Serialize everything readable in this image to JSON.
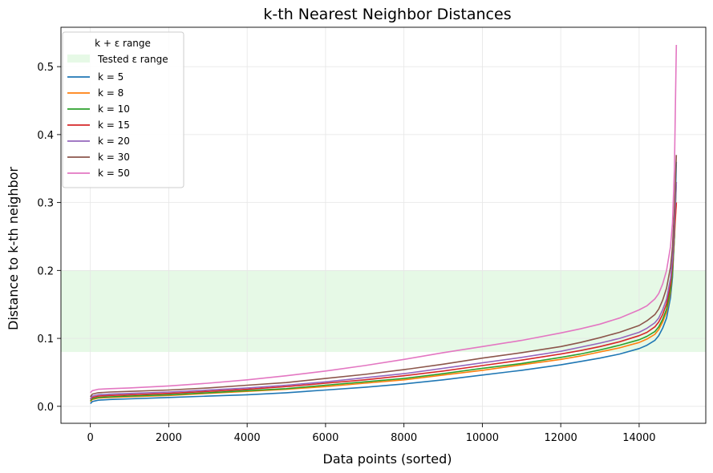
{
  "chart_data": {
    "type": "line",
    "title": "k-th Nearest Neighbor Distances",
    "xlabel": "Data points (sorted)",
    "ylabel": "Distance to k-th neighbor",
    "xlim": [
      -750,
      15700
    ],
    "ylim": [
      -0.025,
      0.558
    ],
    "xticks": [
      0,
      2000,
      4000,
      6000,
      8000,
      10000,
      12000,
      14000
    ],
    "yticks": [
      0.0,
      0.1,
      0.2,
      0.3,
      0.4,
      0.5
    ],
    "xtick_labels": [
      "0",
      "2000",
      "4000",
      "6000",
      "8000",
      "10000",
      "12000",
      "14000"
    ],
    "ytick_labels": [
      "0.0",
      "0.1",
      "0.2",
      "0.3",
      "0.4",
      "0.5"
    ],
    "grid": true,
    "legend": {
      "title": "k + ε range",
      "placement": "top-left",
      "band_label": "Tested ε range"
    },
    "band": {
      "y0": 0.08,
      "y1": 0.2,
      "color": "#e6f9e6",
      "label": "Tested ε range"
    },
    "x": [
      0,
      50,
      200,
      500,
      1000,
      2000,
      3000,
      4000,
      5000,
      6000,
      7000,
      8000,
      9000,
      10000,
      11000,
      12000,
      12500,
      13000,
      13500,
      14000,
      14200,
      14400,
      14500,
      14600,
      14700,
      14800,
      14850,
      14900,
      14950
    ],
    "series": [
      {
        "name": "k = 5",
        "color": "#1f77b4",
        "values": [
          0.004,
          0.007,
          0.009,
          0.01,
          0.011,
          0.013,
          0.015,
          0.017,
          0.02,
          0.024,
          0.028,
          0.033,
          0.039,
          0.046,
          0.053,
          0.061,
          0.066,
          0.071,
          0.077,
          0.085,
          0.09,
          0.097,
          0.104,
          0.115,
          0.13,
          0.16,
          0.19,
          0.25,
          0.36
        ]
      },
      {
        "name": "k = 8",
        "color": "#ff7f0e",
        "values": [
          0.007,
          0.01,
          0.012,
          0.013,
          0.014,
          0.016,
          0.019,
          0.022,
          0.025,
          0.029,
          0.034,
          0.039,
          0.046,
          0.053,
          0.061,
          0.069,
          0.074,
          0.08,
          0.086,
          0.094,
          0.099,
          0.106,
          0.113,
          0.124,
          0.139,
          0.168,
          0.198,
          0.25,
          0.3
        ]
      },
      {
        "name": "k = 10",
        "color": "#2ca02c",
        "values": [
          0.008,
          0.011,
          0.013,
          0.014,
          0.015,
          0.017,
          0.02,
          0.023,
          0.026,
          0.031,
          0.036,
          0.041,
          0.048,
          0.056,
          0.063,
          0.072,
          0.077,
          0.083,
          0.09,
          0.098,
          0.103,
          0.11,
          0.117,
          0.128,
          0.143,
          0.172,
          0.2,
          0.25,
          0.33
        ]
      },
      {
        "name": "k = 15",
        "color": "#d62728",
        "values": [
          0.01,
          0.013,
          0.015,
          0.016,
          0.017,
          0.019,
          0.022,
          0.025,
          0.029,
          0.034,
          0.039,
          0.045,
          0.052,
          0.06,
          0.068,
          0.077,
          0.082,
          0.088,
          0.095,
          0.104,
          0.109,
          0.117,
          0.124,
          0.135,
          0.151,
          0.18,
          0.21,
          0.26,
          0.3
        ]
      },
      {
        "name": "k = 20",
        "color": "#9467bd",
        "values": [
          0.011,
          0.015,
          0.017,
          0.018,
          0.019,
          0.021,
          0.024,
          0.027,
          0.031,
          0.036,
          0.042,
          0.048,
          0.056,
          0.064,
          0.072,
          0.081,
          0.087,
          0.093,
          0.1,
          0.109,
          0.115,
          0.123,
          0.13,
          0.142,
          0.158,
          0.188,
          0.218,
          0.27,
          0.33
        ]
      },
      {
        "name": "k = 30",
        "color": "#8c564b",
        "values": [
          0.014,
          0.018,
          0.02,
          0.021,
          0.022,
          0.024,
          0.027,
          0.031,
          0.035,
          0.041,
          0.047,
          0.054,
          0.062,
          0.071,
          0.079,
          0.088,
          0.094,
          0.101,
          0.109,
          0.119,
          0.126,
          0.135,
          0.143,
          0.156,
          0.174,
          0.205,
          0.235,
          0.29,
          0.37
        ]
      },
      {
        "name": "k = 50",
        "color": "#e377c2",
        "values": [
          0.02,
          0.023,
          0.025,
          0.026,
          0.027,
          0.03,
          0.034,
          0.039,
          0.045,
          0.052,
          0.06,
          0.069,
          0.079,
          0.088,
          0.097,
          0.108,
          0.114,
          0.121,
          0.13,
          0.142,
          0.148,
          0.158,
          0.166,
          0.18,
          0.2,
          0.235,
          0.27,
          0.35,
          0.532
        ]
      }
    ]
  }
}
